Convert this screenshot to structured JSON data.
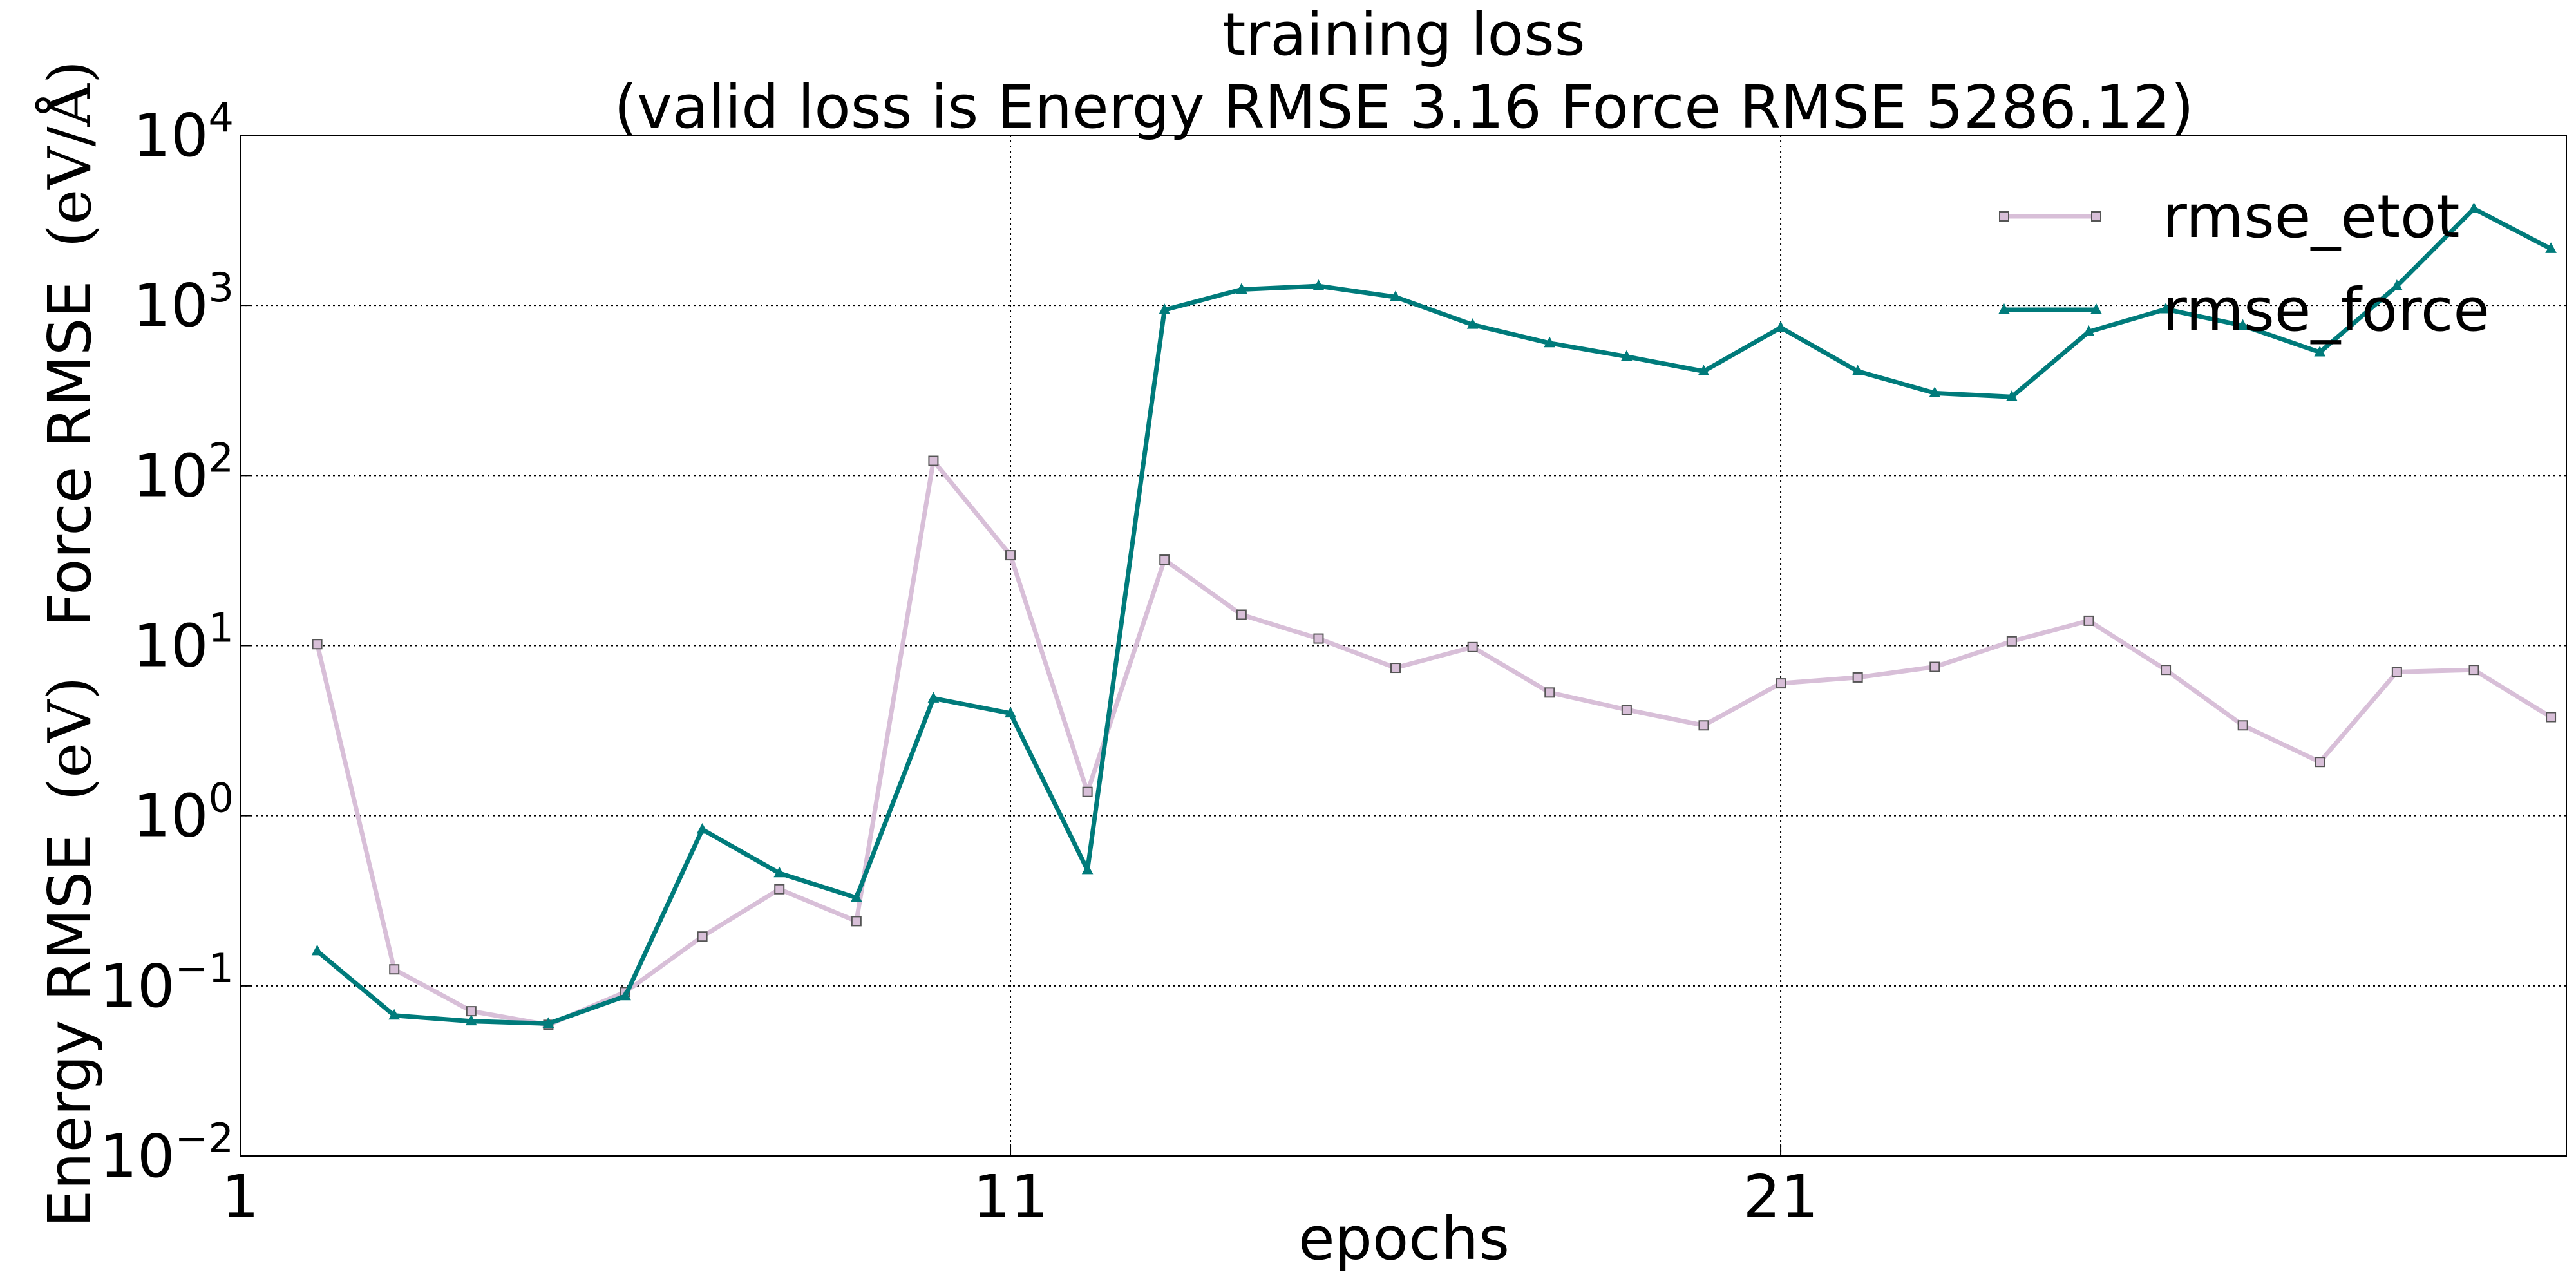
{
  "chart_data": {
    "type": "line",
    "title": "training loss",
    "subtitle": "(valid loss is Energy RMSE 3.16  Force RMSE 5286.12)",
    "xlabel": "epochs",
    "ylabel_text": "Energy RMSE",
    "ylabel_unit1": "(eV)",
    "ylabel_text2": "Force RMSE",
    "ylabel_unit2": "(eV/Å)",
    "yscale": "log",
    "ylim": [
      0.01,
      10000
    ],
    "xlim": [
      1,
      31.2
    ],
    "xticks": [
      1,
      11,
      21
    ],
    "yticks": [
      {
        "value": 0.01,
        "base": "10",
        "exp": "−2"
      },
      {
        "value": 0.1,
        "base": "10",
        "exp": "−1"
      },
      {
        "value": 1,
        "base": "10",
        "exp": "0"
      },
      {
        "value": 10,
        "base": "10",
        "exp": "1"
      },
      {
        "value": 100,
        "base": "10",
        "exp": "2"
      },
      {
        "value": 1000,
        "base": "10",
        "exp": "3"
      },
      {
        "value": 10000,
        "base": "10",
        "exp": "4"
      }
    ],
    "grid": true,
    "legend_position": "top-right",
    "x": [
      2,
      3,
      4,
      5,
      6,
      7,
      8,
      9,
      10,
      11,
      12,
      13,
      14,
      15,
      16,
      17,
      18,
      19,
      20,
      21,
      22,
      23,
      24,
      25,
      26,
      27,
      28,
      29,
      30,
      31
    ],
    "series": [
      {
        "name": "rmse_etot",
        "color": "#d8bfd8",
        "marker": "square",
        "values": [
          10.2,
          0.125,
          0.071,
          0.059,
          0.092,
          0.195,
          0.37,
          0.24,
          122,
          34,
          1.38,
          32,
          15.2,
          11,
          7.4,
          9.8,
          5.3,
          4.2,
          3.4,
          6.0,
          6.5,
          7.5,
          10.6,
          14,
          7.2,
          3.4,
          2.07,
          7.0,
          7.2,
          3.8
        ]
      },
      {
        "name": "rmse_force",
        "color": "#007b7b",
        "marker": "triangle",
        "values": [
          0.16,
          0.067,
          0.062,
          0.06,
          0.087,
          0.83,
          0.46,
          0.33,
          4.9,
          4.0,
          0.48,
          940,
          1240,
          1300,
          1120,
          770,
          600,
          500,
          410,
          740,
          410,
          305,
          290,
          700,
          950,
          760,
          530,
          1300,
          3700,
          2150
        ]
      }
    ]
  }
}
